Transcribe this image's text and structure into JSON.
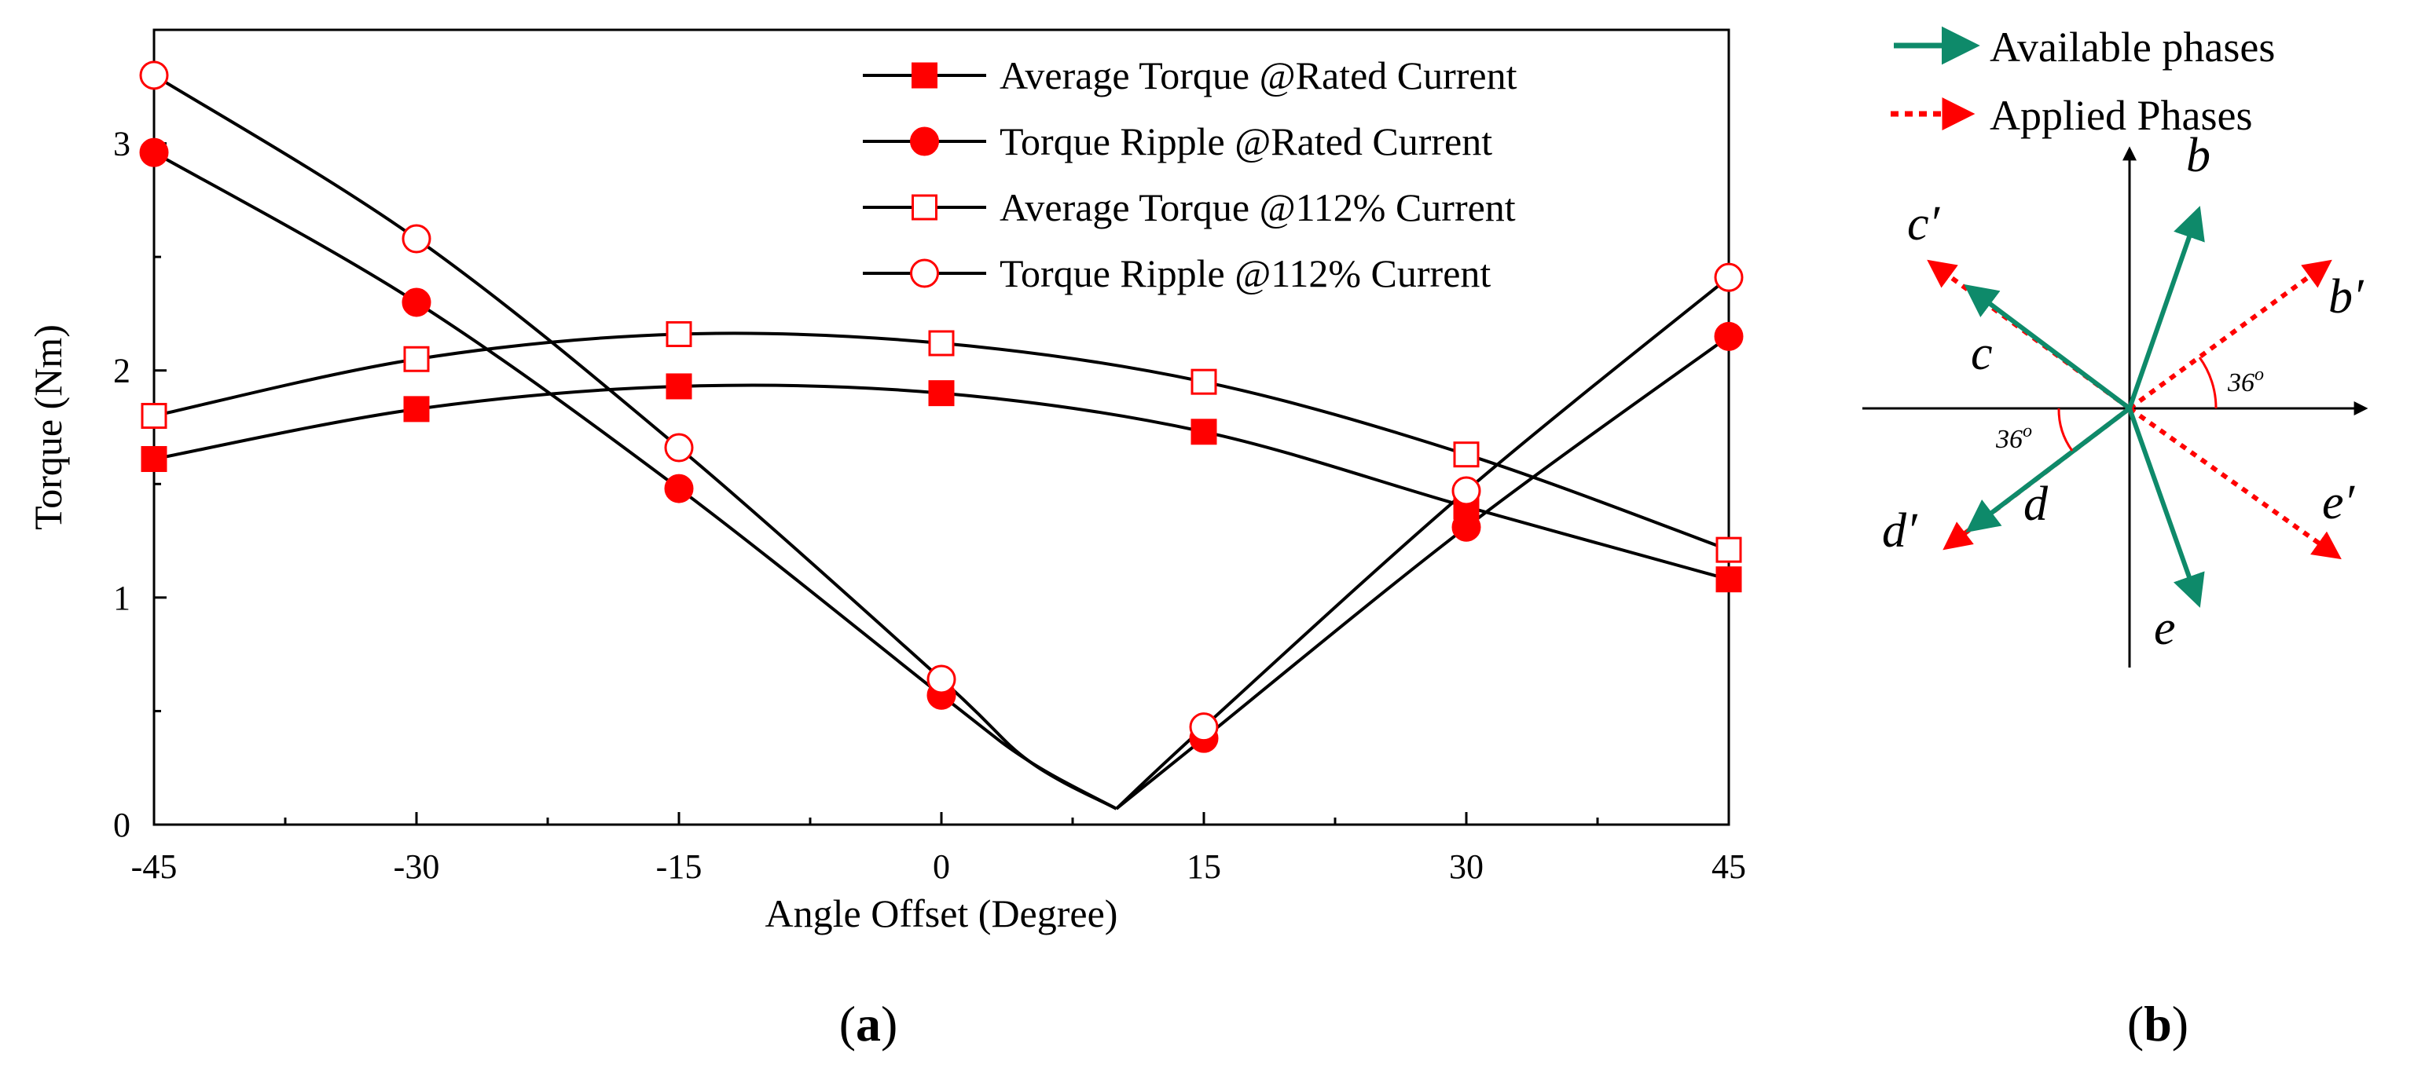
{
  "chart_data": {
    "type": "line",
    "xlabel": "Angle Offset (Degree)",
    "ylabel": "Torque (Nm)",
    "xlim": [
      -45,
      45
    ],
    "ylim": [
      0,
      3.5
    ],
    "xticks": [
      -45,
      -30,
      -15,
      0,
      15,
      30,
      45
    ],
    "yticks": [
      0,
      1,
      2,
      3
    ],
    "categories": [
      -45,
      -30,
      -15,
      0,
      15,
      30,
      45
    ],
    "legend_position": "top-right",
    "series": [
      {
        "name": "Average Torque @Rated Current",
        "marker": "square-filled",
        "color": "#ff0000",
        "values": [
          1.61,
          1.83,
          1.93,
          1.9,
          1.73,
          1.4,
          1.08
        ]
      },
      {
        "name": "Torque Ripple @Rated Current",
        "marker": "circle-filled",
        "color": "#ff0000",
        "values": [
          2.96,
          2.3,
          1.48,
          0.57,
          0.38,
          1.31,
          2.15
        ]
      },
      {
        "name": "Average Torque @112% Current",
        "marker": "square-open",
        "color": "#ff0000",
        "values": [
          1.8,
          2.05,
          2.16,
          2.12,
          1.95,
          1.63,
          1.21
        ]
      },
      {
        "name": "Torque Ripple @112% Current",
        "marker": "circle-open",
        "color": "#ff0000",
        "values": [
          3.3,
          2.58,
          1.66,
          0.64,
          0.43,
          1.47,
          2.41
        ]
      }
    ],
    "panel_label": "a"
  },
  "diagram": {
    "panel_label": "b",
    "legend": {
      "available": "Available phases",
      "applied": "Applied Phases"
    },
    "labels": {
      "b": "b",
      "b_prime": "b′",
      "c": "c",
      "c_prime": "c′",
      "d": "d",
      "d_prime": "d′",
      "e": "e",
      "e_prime": "e′"
    },
    "angle_upper": "36",
    "angle_lower": "36",
    "angle_sup": "o",
    "colors": {
      "available": "#0e8a6a",
      "applied": "#ff0000"
    }
  }
}
